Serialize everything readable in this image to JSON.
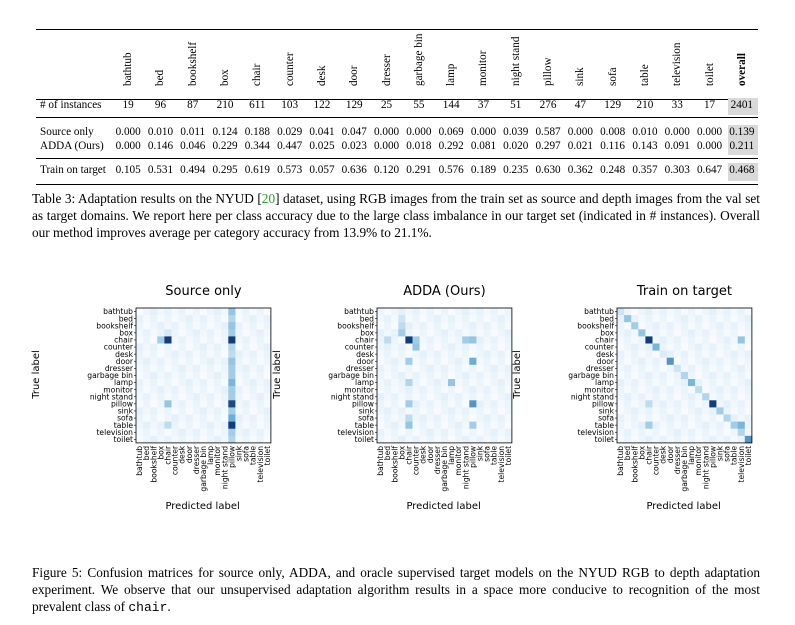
{
  "table": {
    "columns": [
      "bathtub",
      "bed",
      "bookshelf",
      "box",
      "chair",
      "counter",
      "desk",
      "door",
      "dresser",
      "garbage bin",
      "lamp",
      "monitor",
      "night stand",
      "pillow",
      "sink",
      "sofa",
      "table",
      "television",
      "toilet",
      "overall"
    ],
    "rows": [
      {
        "label": "# of instances",
        "values": [
          "19",
          "96",
          "87",
          "210",
          "611",
          "103",
          "122",
          "129",
          "25",
          "55",
          "144",
          "37",
          "51",
          "276",
          "47",
          "129",
          "210",
          "33",
          "17",
          "2401"
        ]
      },
      {
        "label": "Source only",
        "values": [
          "0.000",
          "0.010",
          "0.011",
          "0.124",
          "0.188",
          "0.029",
          "0.041",
          "0.047",
          "0.000",
          "0.000",
          "0.069",
          "0.000",
          "0.039",
          "0.587",
          "0.000",
          "0.008",
          "0.010",
          "0.000",
          "0.000",
          "0.139"
        ]
      },
      {
        "label": "ADDA (Ours)",
        "values": [
          "0.000",
          "0.146",
          "0.046",
          "0.229",
          "0.344",
          "0.447",
          "0.025",
          "0.023",
          "0.000",
          "0.018",
          "0.292",
          "0.081",
          "0.020",
          "0.297",
          "0.021",
          "0.116",
          "0.143",
          "0.091",
          "0.000",
          "0.211"
        ]
      },
      {
        "label": "Train on target",
        "values": [
          "0.105",
          "0.531",
          "0.494",
          "0.295",
          "0.619",
          "0.573",
          "0.057",
          "0.636",
          "0.120",
          "0.291",
          "0.576",
          "0.189",
          "0.235",
          "0.630",
          "0.362",
          "0.248",
          "0.357",
          "0.303",
          "0.647",
          "0.468"
        ]
      }
    ]
  },
  "table_caption": {
    "prefix": "Table 3: Adaptation results on the NYUD [",
    "ref": "20",
    "suffix": "] dataset, using RGB images from the train set as source and depth images from the val set as target domains. We report here per class accuracy due to the large class imbalance in our target set (indicated in # instances). Overall our method improves average per category accuracy from 13.9% to 21.1%."
  },
  "figure": {
    "class_labels": [
      "bathtub",
      "bed",
      "bookshelf",
      "box",
      "chair",
      "counter",
      "desk",
      "door",
      "dresser",
      "garbage bin",
      "lamp",
      "monitor",
      "night stand",
      "pillow",
      "sink",
      "sofa",
      "table",
      "television",
      "toilet"
    ],
    "ylabel": "True label",
    "xlabel": "Predicted label",
    "colormap": {
      "low": "#f7fbff",
      "mid": "#6baed6",
      "high": "#08306b"
    },
    "panels": [
      {
        "title": "Source only",
        "chart_data": {
          "type": "heatmap",
          "highlights": [
            {
              "row": "box",
              "col": "chair",
              "level": 0.12
            },
            {
              "row": "chair",
              "col": "box",
              "level": 0.3
            },
            {
              "row": "chair",
              "col": "chair",
              "level": 0.95
            },
            {
              "row": "chair",
              "col": "pillow",
              "level": 0.95
            },
            {
              "row": "bathtub",
              "col": "pillow",
              "level": 0.35
            },
            {
              "row": "bed",
              "col": "pillow",
              "level": 0.25
            },
            {
              "row": "bookshelf",
              "col": "pillow",
              "level": 0.35
            },
            {
              "row": "box",
              "col": "pillow",
              "level": 0.3
            },
            {
              "row": "counter",
              "col": "pillow",
              "level": 0.25
            },
            {
              "row": "desk",
              "col": "pillow",
              "level": 0.2
            },
            {
              "row": "door",
              "col": "pillow",
              "level": 0.35
            },
            {
              "row": "dresser",
              "col": "pillow",
              "level": 0.3
            },
            {
              "row": "garbage bin",
              "col": "pillow",
              "level": 0.3
            },
            {
              "row": "lamp",
              "col": "pillow",
              "level": 0.45
            },
            {
              "row": "monitor",
              "col": "pillow",
              "level": 0.3
            },
            {
              "row": "night stand",
              "col": "pillow",
              "level": 0.3
            },
            {
              "row": "pillow",
              "col": "pillow",
              "level": 0.9
            },
            {
              "row": "pillow",
              "col": "chair",
              "level": 0.35
            },
            {
              "row": "sink",
              "col": "pillow",
              "level": 0.3
            },
            {
              "row": "sofa",
              "col": "pillow",
              "level": 0.5
            },
            {
              "row": "table",
              "col": "pillow",
              "level": 0.95
            },
            {
              "row": "table",
              "col": "chair",
              "level": 0.2
            },
            {
              "row": "television",
              "col": "pillow",
              "level": 0.3
            },
            {
              "row": "toilet",
              "col": "pillow",
              "level": 0.25
            }
          ]
        }
      },
      {
        "title": "ADDA (Ours)",
        "chart_data": {
          "type": "heatmap",
          "highlights": [
            {
              "row": "box",
              "col": "box",
              "level": 0.3
            },
            {
              "row": "bookshelf",
              "col": "box",
              "level": 0.2
            },
            {
              "row": "chair",
              "col": "chair",
              "level": 0.95
            },
            {
              "row": "chair",
              "col": "counter",
              "level": 0.3
            },
            {
              "row": "chair",
              "col": "night stand",
              "level": 0.3
            },
            {
              "row": "chair",
              "col": "pillow",
              "level": 0.35
            },
            {
              "row": "chair",
              "col": "bed",
              "level": 0.2
            },
            {
              "row": "counter",
              "col": "counter",
              "level": 0.35
            },
            {
              "row": "door",
              "col": "chair",
              "level": 0.3
            },
            {
              "row": "door",
              "col": "pillow",
              "level": 0.5
            },
            {
              "row": "lamp",
              "col": "lamp",
              "level": 0.35
            },
            {
              "row": "lamp",
              "col": "chair",
              "level": 0.25
            },
            {
              "row": "pillow",
              "col": "pillow",
              "level": 0.6
            },
            {
              "row": "pillow",
              "col": "chair",
              "level": 0.3
            },
            {
              "row": "table",
              "col": "chair",
              "level": 0.35
            },
            {
              "row": "table",
              "col": "pillow",
              "level": 0.3
            },
            {
              "row": "bed",
              "col": "box",
              "level": 0.15
            },
            {
              "row": "sofa",
              "col": "chair",
              "level": 0.2
            }
          ]
        }
      },
      {
        "title": "Train on target",
        "chart_data": {
          "type": "heatmap",
          "highlights": [
            {
              "row": "bathtub",
              "col": "bathtub",
              "level": 0.15
            },
            {
              "row": "bed",
              "col": "bed",
              "level": 0.35
            },
            {
              "row": "bookshelf",
              "col": "bookshelf",
              "level": 0.3
            },
            {
              "row": "box",
              "col": "box",
              "level": 0.35
            },
            {
              "row": "chair",
              "col": "chair",
              "level": 0.95
            },
            {
              "row": "chair",
              "col": "television",
              "level": 0.35
            },
            {
              "row": "counter",
              "col": "counter",
              "level": 0.45
            },
            {
              "row": "desk",
              "col": "desk",
              "level": 0.1
            },
            {
              "row": "door",
              "col": "door",
              "level": 0.6
            },
            {
              "row": "dresser",
              "col": "dresser",
              "level": 0.15
            },
            {
              "row": "garbage bin",
              "col": "garbage bin",
              "level": 0.25
            },
            {
              "row": "lamp",
              "col": "lamp",
              "level": 0.45
            },
            {
              "row": "monitor",
              "col": "monitor",
              "level": 0.2
            },
            {
              "row": "night stand",
              "col": "night stand",
              "level": 0.25
            },
            {
              "row": "pillow",
              "col": "pillow",
              "level": 0.95
            },
            {
              "row": "pillow",
              "col": "chair",
              "level": 0.2
            },
            {
              "row": "sink",
              "col": "sink",
              "level": 0.3
            },
            {
              "row": "sofa",
              "col": "sofa",
              "level": 0.25
            },
            {
              "row": "table",
              "col": "chair",
              "level": 0.3
            },
            {
              "row": "table",
              "col": "television",
              "level": 0.45
            },
            {
              "row": "table",
              "col": "table",
              "level": 0.3
            },
            {
              "row": "television",
              "col": "television",
              "level": 0.25
            },
            {
              "row": "toilet",
              "col": "toilet",
              "level": 0.6
            }
          ]
        }
      }
    ]
  },
  "figure_caption": {
    "text": "Figure 5: Confusion matrices for source only, ADDA, and oracle supervised target models on the NYUD RGB to depth adaptation experiment. We observe that our unsupervised adaptation algorithm results in a space more conducive to recognition of the most prevalent class of ",
    "code": "chair",
    "end": "."
  }
}
